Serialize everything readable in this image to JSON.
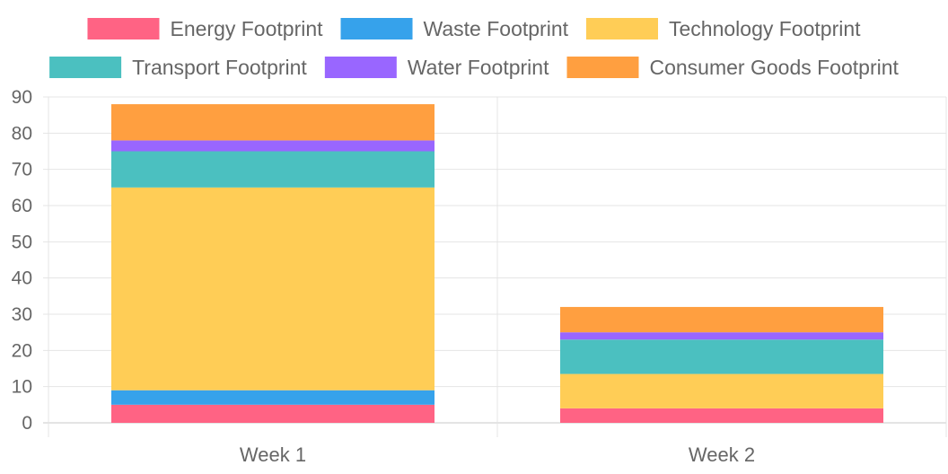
{
  "chart_data": {
    "type": "bar",
    "stacked": true,
    "categories": [
      "Week 1",
      "Week 2"
    ],
    "series": [
      {
        "name": "Energy Footprint",
        "color": "#ff6384",
        "values": [
          5,
          4
        ]
      },
      {
        "name": "Waste Footprint",
        "color": "#36a2eb",
        "values": [
          4,
          0
        ]
      },
      {
        "name": "Technology Footprint",
        "color": "#ffcd56",
        "values": [
          56,
          9.5
        ]
      },
      {
        "name": "Transport Footprint",
        "color": "#4bc0c0",
        "values": [
          10,
          9.5
        ]
      },
      {
        "name": "Water Footprint",
        "color": "#9966ff",
        "values": [
          3,
          2
        ]
      },
      {
        "name": "Consumer Goods Footprint",
        "color": "#ff9f40",
        "values": [
          10,
          7
        ]
      }
    ],
    "ylim": [
      0,
      90
    ],
    "yticks": [
      0,
      10,
      20,
      30,
      40,
      50,
      60,
      70,
      80,
      90
    ],
    "grid": true,
    "legend_position": "top"
  }
}
